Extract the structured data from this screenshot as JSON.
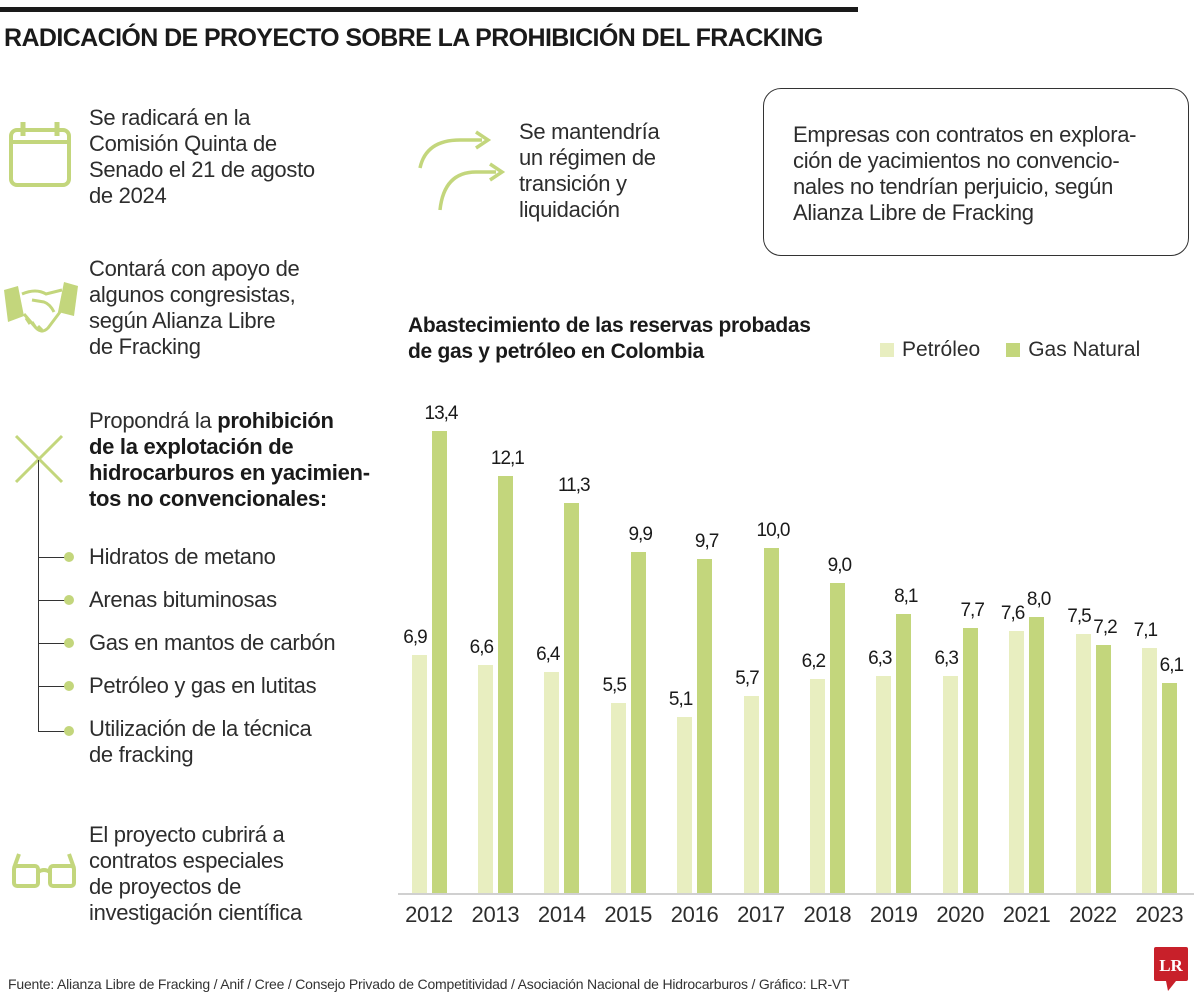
{
  "header": {
    "title": "RADICACIÓN DE PROYECTO SOBRE LA PROHIBICIÓN DEL FRACKING"
  },
  "points": {
    "p1": [
      "Se radicará en la",
      "Comisión Quinta de",
      "Senado el 21 de agosto",
      "de 2024"
    ],
    "p2": [
      "Contará con apoyo de",
      "algunos congresistas,",
      "según Alianza Libre",
      "de Fracking"
    ],
    "p3": [
      "Se mantendría",
      "un régimen de",
      "transición y",
      "liquidación"
    ],
    "box": [
      "Empresas con contratos en explora-",
      "ción de yacimientos no convencio-",
      "nales no tendrían perjuicio, según",
      "Alianza Libre de Fracking"
    ],
    "p4_normal": "Propondrá la ",
    "p4_bold": [
      "prohibición",
      "de la explotación de",
      "hidrocarburos en yacimien-",
      "tos no convencionales:"
    ],
    "list": [
      "Hidratos de metano",
      "Arenas bituminosas",
      "Gas en mantos de carbón",
      "Petróleo y gas en lutitas",
      "Utilización de la técnica",
      "de fracking"
    ],
    "p5": [
      "El proyecto cubrirá a",
      "contratos especiales",
      "de proyectos de",
      "investigación científica"
    ]
  },
  "icons": [
    "calendar-icon",
    "handshake-icon",
    "x-icon",
    "arrows-icon",
    "glasses-icon"
  ],
  "colors": {
    "accent": "#c3d67c",
    "light": "#e8eec0",
    "logo": "#c8202a"
  },
  "chart_data": {
    "type": "bar",
    "title": [
      "Abastecimiento de las reservas probadas",
      "de gas y petróleo en Colombia"
    ],
    "categories": [
      "2012",
      "2013",
      "2014",
      "2015",
      "2016",
      "2017",
      "2018",
      "2019",
      "2020",
      "2021",
      "2022",
      "2023"
    ],
    "series": [
      {
        "name": "Petróleo",
        "color": "#e8eec0",
        "values": [
          6.9,
          6.6,
          6.4,
          5.5,
          5.1,
          5.7,
          6.2,
          6.3,
          6.3,
          7.6,
          7.5,
          7.1
        ],
        "labels": [
          "6,9",
          "6,6",
          "6,4",
          "5,5",
          "5,1",
          "5,7",
          "6,2",
          "6,3",
          "6,3",
          "7,6",
          "7,5",
          "7,1"
        ]
      },
      {
        "name": "Gas Natural",
        "color": "#c3d67c",
        "values": [
          13.4,
          12.1,
          11.3,
          9.9,
          9.7,
          10.0,
          9.0,
          8.1,
          7.7,
          8.0,
          7.2,
          6.1
        ],
        "labels": [
          "13,4",
          "12,1",
          "11,3",
          "9,9",
          "9,7",
          "10,0",
          "9,0",
          "8,1",
          "7,7",
          "8,0",
          "7,2",
          "6,1"
        ]
      }
    ],
    "ylim": [
      0,
      13.4
    ],
    "grid": false,
    "legend": "top-right"
  },
  "footer": {
    "source": "Fuente: Alianza Libre de Fracking / Anif / Cree / Consejo Privado de Competitividad / Asociación Nacional de Hidrocarburos / Gráfico: LR-VT",
    "logo": "LR"
  }
}
